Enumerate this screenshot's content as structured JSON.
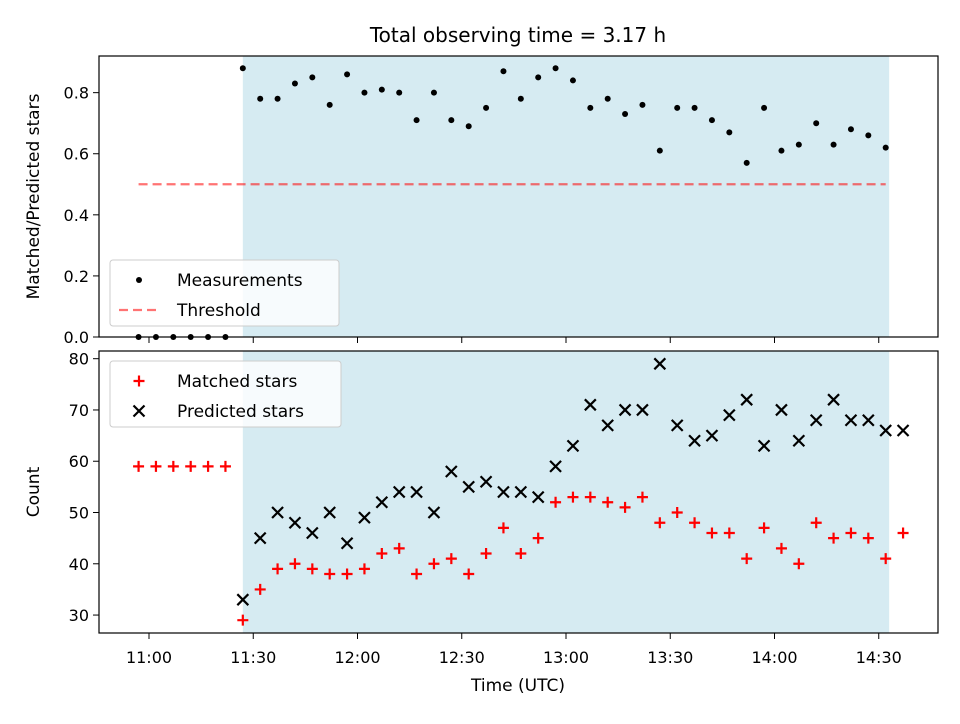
{
  "chart_data": {
    "type": "scatter",
    "title": "Total observing time = 3.17 h",
    "xlabel": "Time (UTC)",
    "x_ticks": [
      "11:00",
      "11:30",
      "12:00",
      "12:30",
      "13:00",
      "13:30",
      "14:00",
      "14:30"
    ],
    "shaded_interval": {
      "start": "11:27",
      "end": "14:33",
      "color": "#add8e6"
    },
    "panels": [
      {
        "ylabel": "Matched/Predicted stars",
        "ylim": [
          0,
          0.92
        ],
        "y_ticks": [
          "0.0",
          "0.2",
          "0.4",
          "0.6",
          "0.8"
        ],
        "legend": "lower-left",
        "series": [
          {
            "name": "Measurements",
            "marker": "dot",
            "color": "#000000",
            "x": [
              "10:57",
              "11:02",
              "11:07",
              "11:12",
              "11:17",
              "11:22",
              "11:27",
              "11:32",
              "11:37",
              "11:42",
              "11:47",
              "11:52",
              "11:57",
              "12:02",
              "12:07",
              "12:12",
              "12:17",
              "12:22",
              "12:27",
              "12:32",
              "12:37",
              "12:42",
              "12:47",
              "12:52",
              "12:57",
              "13:02",
              "13:07",
              "13:12",
              "13:17",
              "13:22",
              "13:27",
              "13:32",
              "13:37",
              "13:42",
              "13:47",
              "13:52",
              "13:57",
              "14:02",
              "14:07",
              "14:12",
              "14:17",
              "14:22",
              "14:27",
              "14:32"
            ],
            "y": [
              0,
              0,
              0,
              0,
              0,
              0,
              0.88,
              0.78,
              0.78,
              0.83,
              0.85,
              0.76,
              0.86,
              0.8,
              0.81,
              0.8,
              0.71,
              0.8,
              0.71,
              0.69,
              0.75,
              0.87,
              0.78,
              0.85,
              0.88,
              0.84,
              0.75,
              0.78,
              0.73,
              0.76,
              0.61,
              0.75,
              0.75,
              0.71,
              0.67,
              0.57,
              0.75,
              0.61,
              0.63,
              0.7,
              0.63,
              0.68,
              0.66,
              0.62
            ]
          },
          {
            "name": "Threshold",
            "style": "dashed",
            "color": "#ff0000",
            "x": [
              "10:57",
              "14:32"
            ],
            "y": [
              0.5,
              0.5
            ]
          }
        ]
      },
      {
        "ylabel": "Count",
        "ylim": [
          26.5,
          81.5
        ],
        "y_ticks": [
          "30",
          "40",
          "50",
          "60",
          "70",
          "80"
        ],
        "legend": "upper-left",
        "series": [
          {
            "name": "Matched stars",
            "marker": "plus",
            "color": "#ff0000",
            "x": [
              "10:57",
              "11:02",
              "11:07",
              "11:12",
              "11:17",
              "11:22",
              "11:27",
              "11:32",
              "11:37",
              "11:42",
              "11:47",
              "11:52",
              "11:57",
              "12:02",
              "12:07",
              "12:12",
              "12:17",
              "12:22",
              "12:27",
              "12:32",
              "12:37",
              "12:42",
              "12:47",
              "12:52",
              "12:57",
              "13:02",
              "13:07",
              "13:12",
              "13:17",
              "13:22",
              "13:27",
              "13:32",
              "13:37",
              "13:42",
              "13:47",
              "13:52",
              "13:57",
              "14:02",
              "14:07",
              "14:12",
              "14:17",
              "14:22",
              "14:27",
              "14:32",
              "14:37"
            ],
            "y": [
              59,
              59,
              59,
              59,
              59,
              59,
              29,
              35,
              39,
              40,
              39,
              38,
              38,
              39,
              42,
              43,
              38,
              40,
              41,
              38,
              42,
              47,
              42,
              45,
              52,
              53,
              53,
              52,
              51,
              53,
              48,
              50,
              48,
              46,
              46,
              41,
              47,
              43,
              40,
              48,
              45,
              46,
              45,
              41,
              46
            ]
          },
          {
            "name": "Predicted stars",
            "marker": "x",
            "color": "#000000",
            "x": [
              "11:27",
              "11:32",
              "11:37",
              "11:42",
              "11:47",
              "11:52",
              "11:57",
              "12:02",
              "12:07",
              "12:12",
              "12:17",
              "12:22",
              "12:27",
              "12:32",
              "12:37",
              "12:42",
              "12:47",
              "12:52",
              "12:57",
              "13:02",
              "13:07",
              "13:12",
              "13:17",
              "13:22",
              "13:27",
              "13:32",
              "13:37",
              "13:42",
              "13:47",
              "13:52",
              "13:57",
              "14:02",
              "14:07",
              "14:12",
              "14:17",
              "14:22",
              "14:27",
              "14:32",
              "14:37"
            ],
            "y": [
              33,
              45,
              50,
              48,
              46,
              50,
              44,
              49,
              52,
              54,
              54,
              50,
              58,
              55,
              56,
              54,
              54,
              53,
              59,
              63,
              71,
              67,
              70,
              70,
              79,
              67,
              64,
              65,
              69,
              72,
              63,
              70,
              64,
              68,
              72,
              68,
              68,
              66,
              66
            ]
          }
        ]
      }
    ]
  }
}
